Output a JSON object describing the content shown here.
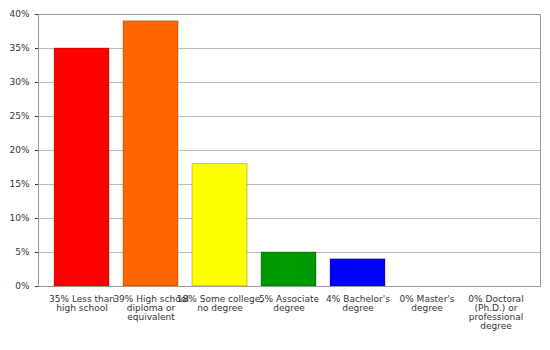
{
  "chart_data": {
    "type": "bar",
    "categories": [
      "35% Less than high school",
      "39% High school diploma or equivalent",
      "18% Some college, no degree",
      "5% Associate degree",
      "4% Bachelor's degree",
      "0% Master's degree",
      "0% Doctoral (Ph.D.) or professional degree"
    ],
    "values": [
      35,
      39,
      18,
      5,
      4,
      0,
      0
    ],
    "colors": [
      "#ff0000",
      "#ff6600",
      "#ffff00",
      "#009900",
      "#0000ff",
      "#9900ff",
      "#ff00ff"
    ],
    "ylim": [
      0,
      40
    ],
    "yticks": [
      {
        "value": 0,
        "label": "0%"
      },
      {
        "value": 5,
        "label": "5%"
      },
      {
        "value": 10,
        "label": "10%"
      },
      {
        "value": 15,
        "label": "15%"
      },
      {
        "value": 20,
        "label": "20%"
      },
      {
        "value": 25,
        "label": "25%"
      },
      {
        "value": 30,
        "label": "30%"
      },
      {
        "value": 35,
        "label": "35%"
      },
      {
        "value": 40,
        "label": "40%"
      }
    ],
    "grid": true
  }
}
